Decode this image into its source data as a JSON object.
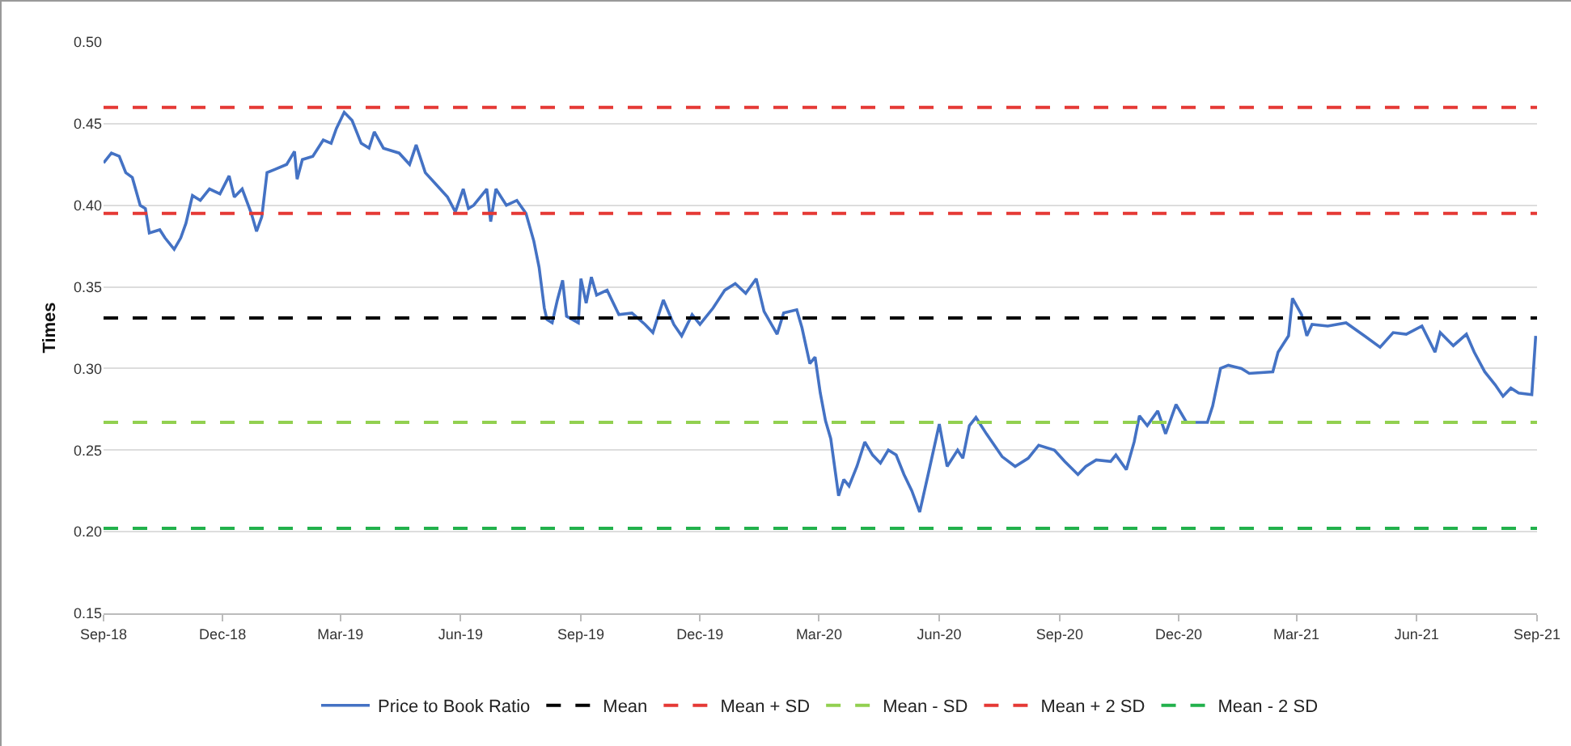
{
  "chart_data": {
    "type": "line",
    "ylabel": "Times",
    "xlim": [
      "2018-09-01",
      "2021-09-01"
    ],
    "xticks": [
      {
        "value": "2018-09-01",
        "label": "Sep-18"
      },
      {
        "value": "2018-12-01",
        "label": "Dec-18"
      },
      {
        "value": "2019-03-01",
        "label": "Mar-19"
      },
      {
        "value": "2019-06-01",
        "label": "Jun-19"
      },
      {
        "value": "2019-09-01",
        "label": "Sep-19"
      },
      {
        "value": "2019-12-01",
        "label": "Dec-19"
      },
      {
        "value": "2020-03-01",
        "label": "Mar-20"
      },
      {
        "value": "2020-06-01",
        "label": "Jun-20"
      },
      {
        "value": "2020-09-01",
        "label": "Sep-20"
      },
      {
        "value": "2020-12-01",
        "label": "Dec-20"
      },
      {
        "value": "2021-03-01",
        "label": "Mar-21"
      },
      {
        "value": "2021-06-01",
        "label": "Jun-21"
      },
      {
        "value": "2021-09-01",
        "label": "Sep-21"
      }
    ],
    "ylim": [
      0.15,
      0.5
    ],
    "yticks": [
      {
        "value": 0.15,
        "label": "0.15"
      },
      {
        "value": 0.2,
        "label": "0.20"
      },
      {
        "value": 0.25,
        "label": "0.25"
      },
      {
        "value": 0.3,
        "label": "0.30"
      },
      {
        "value": 0.35,
        "label": "0.35"
      },
      {
        "value": 0.4,
        "label": "0.40"
      },
      {
        "value": 0.45,
        "label": "0.45"
      },
      {
        "value": 0.5,
        "label": "0.50"
      }
    ],
    "grid": "y",
    "legend": "bottom",
    "marker": "none",
    "series": [
      {
        "name": "Price to Book Ratio",
        "color": "#4472c4",
        "line_style": "solid",
        "x": [
          "2018-09-01",
          "2018-09-07",
          "2018-09-13",
          "2018-09-18",
          "2018-09-23",
          "2018-09-29",
          "2018-10-03",
          "2018-10-06",
          "2018-10-14",
          "2018-10-18",
          "2018-10-25",
          "2018-10-30",
          "2018-11-03",
          "2018-11-08",
          "2018-11-14",
          "2018-11-21",
          "2018-11-29",
          "2018-12-06",
          "2018-12-10",
          "2018-12-16",
          "2018-12-23",
          "2018-12-27",
          "2018-12-31",
          "2019-01-04",
          "2019-01-10",
          "2019-01-19",
          "2019-01-25",
          "2019-01-27",
          "2019-01-31",
          "2019-02-08",
          "2019-02-16",
          "2019-02-22",
          "2019-02-26",
          "2019-03-04",
          "2019-03-10",
          "2019-03-17",
          "2019-03-23",
          "2019-03-27",
          "2019-04-03",
          "2019-04-15",
          "2019-04-23",
          "2019-04-28",
          "2019-05-05",
          "2019-05-13",
          "2019-05-22",
          "2019-05-28",
          "2019-06-03",
          "2019-06-07",
          "2019-06-11",
          "2019-06-21",
          "2019-06-24",
          "2019-06-28",
          "2019-07-06",
          "2019-07-14",
          "2019-07-21",
          "2019-07-27",
          "2019-07-31",
          "2019-08-04",
          "2019-08-06",
          "2019-08-10",
          "2019-08-14",
          "2019-08-18",
          "2019-08-21",
          "2019-08-30",
          "2019-09-01",
          "2019-09-05",
          "2019-09-09",
          "2019-09-13",
          "2019-09-21",
          "2019-09-30",
          "2019-10-10",
          "2019-10-20",
          "2019-10-26",
          "2019-11-03",
          "2019-11-11",
          "2019-11-17",
          "2019-11-25",
          "2019-12-01",
          "2019-12-11",
          "2019-12-20",
          "2019-12-28",
          "2020-01-05",
          "2020-01-13",
          "2020-01-19",
          "2020-01-29",
          "2020-02-03",
          "2020-02-13",
          "2020-02-17",
          "2020-02-23",
          "2020-02-27",
          "2020-03-02",
          "2020-03-06",
          "2020-03-10",
          "2020-03-16",
          "2020-03-20",
          "2020-03-24",
          "2020-03-30",
          "2020-04-05",
          "2020-04-11",
          "2020-04-17",
          "2020-04-23",
          "2020-04-29",
          "2020-05-05",
          "2020-05-11",
          "2020-05-17",
          "2020-05-24",
          "2020-06-01",
          "2020-06-07",
          "2020-06-15",
          "2020-06-19",
          "2020-06-24",
          "2020-06-29",
          "2020-07-07",
          "2020-07-19",
          "2020-07-29",
          "2020-08-08",
          "2020-08-16",
          "2020-08-28",
          "2020-09-05",
          "2020-09-15",
          "2020-09-21",
          "2020-09-29",
          "2020-10-10",
          "2020-10-14",
          "2020-10-22",
          "2020-10-28",
          "2020-11-01",
          "2020-11-07",
          "2020-11-15",
          "2020-11-21",
          "2020-11-29",
          "2020-12-07",
          "2020-12-23",
          "2020-12-27",
          "2021-01-02",
          "2021-01-08",
          "2021-01-18",
          "2021-01-24",
          "2021-02-11",
          "2021-02-15",
          "2021-02-23",
          "2021-02-26",
          "2021-03-05",
          "2021-03-09",
          "2021-03-13",
          "2021-03-25",
          "2021-04-08",
          "2021-04-22",
          "2021-05-04",
          "2021-05-14",
          "2021-05-24",
          "2021-06-05",
          "2021-06-15",
          "2021-06-19",
          "2021-06-29",
          "2021-07-09",
          "2021-07-15",
          "2021-07-23",
          "2021-07-31",
          "2021-08-06",
          "2021-08-12",
          "2021-08-18",
          "2021-08-28",
          "2021-08-31"
        ],
        "values": [
          0.426,
          0.432,
          0.43,
          0.42,
          0.417,
          0.4,
          0.398,
          0.383,
          0.385,
          0.38,
          0.373,
          0.38,
          0.389,
          0.406,
          0.403,
          0.41,
          0.407,
          0.418,
          0.405,
          0.41,
          0.395,
          0.384,
          0.393,
          0.42,
          0.422,
          0.425,
          0.433,
          0.416,
          0.428,
          0.43,
          0.44,
          0.438,
          0.447,
          0.457,
          0.452,
          0.438,
          0.435,
          0.445,
          0.435,
          0.432,
          0.425,
          0.437,
          0.42,
          0.413,
          0.405,
          0.396,
          0.41,
          0.398,
          0.4,
          0.41,
          0.39,
          0.41,
          0.4,
          0.403,
          0.395,
          0.378,
          0.362,
          0.337,
          0.33,
          0.328,
          0.342,
          0.354,
          0.332,
          0.328,
          0.355,
          0.34,
          0.356,
          0.345,
          0.348,
          0.333,
          0.334,
          0.327,
          0.322,
          0.342,
          0.327,
          0.32,
          0.333,
          0.327,
          0.337,
          0.348,
          0.352,
          0.346,
          0.355,
          0.335,
          0.321,
          0.334,
          0.336,
          0.325,
          0.303,
          0.307,
          0.285,
          0.268,
          0.257,
          0.222,
          0.232,
          0.228,
          0.24,
          0.255,
          0.247,
          0.242,
          0.25,
          0.247,
          0.235,
          0.225,
          0.212,
          0.237,
          0.266,
          0.24,
          0.25,
          0.245,
          0.265,
          0.27,
          0.26,
          0.246,
          0.24,
          0.245,
          0.253,
          0.25,
          0.243,
          0.235,
          0.24,
          0.244,
          0.243,
          0.247,
          0.238,
          0.255,
          0.271,
          0.265,
          0.274,
          0.26,
          0.278,
          0.267,
          0.267,
          0.277,
          0.3,
          0.302,
          0.3,
          0.297,
          0.298,
          0.31,
          0.32,
          0.343,
          0.333,
          0.32,
          0.327,
          0.326,
          0.328,
          0.32,
          0.313,
          0.322,
          0.321,
          0.326,
          0.31,
          0.322,
          0.314,
          0.321,
          0.31,
          0.298,
          0.29,
          0.283,
          0.288,
          0.285,
          0.284,
          0.32
        ]
      },
      {
        "name": "Mean",
        "color": "#000000",
        "line_style": "dashed",
        "x": [
          "2018-09-01",
          "2021-09-01"
        ],
        "values": [
          0.331,
          0.331
        ]
      },
      {
        "name": "Mean + SD",
        "color": "#e53935",
        "line_style": "dashed",
        "x": [
          "2018-09-01",
          "2021-09-01"
        ],
        "values": [
          0.395,
          0.395
        ]
      },
      {
        "name": "Mean - SD",
        "color": "#92d050",
        "line_style": "dashed",
        "x": [
          "2018-09-01",
          "2021-09-01"
        ],
        "values": [
          0.267,
          0.267
        ]
      },
      {
        "name": "Mean + 2 SD",
        "color": "#e53935",
        "line_style": "dashed",
        "x": [
          "2018-09-01",
          "2021-09-01"
        ],
        "values": [
          0.46,
          0.46
        ]
      },
      {
        "name": "Mean - 2 SD",
        "color": "#22b14c",
        "line_style": "dashed",
        "x": [
          "2018-09-01",
          "2021-09-01"
        ],
        "values": [
          0.202,
          0.202
        ]
      }
    ]
  }
}
